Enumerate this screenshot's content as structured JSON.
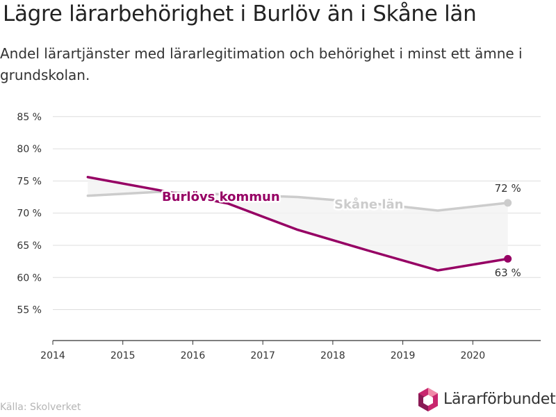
{
  "chart_data": {
    "type": "line",
    "title": "Lägre lärarbehörighet i Burlöv än i Skåne län",
    "subtitle": "Andel lärartjänster med lärarlegitimation och behörighet i minst ett ämne i grundskolan.",
    "source": "Källa: Skolverket",
    "brand": "Lärarförbundet",
    "x": [
      2014.5,
      2015.5,
      2016.5,
      2017.5,
      2018.5,
      2019.5,
      2020.5
    ],
    "x_ticks": [
      "2014",
      "2015",
      "2016",
      "2017",
      "2018",
      "2019",
      "2020"
    ],
    "xlim": [
      2014,
      2020.97
    ],
    "y_ticks": [
      "55 %",
      "60 %",
      "65 %",
      "70 %",
      "75 %",
      "80 %",
      "85 %"
    ],
    "ylim": [
      50.2,
      88
    ],
    "grid": true,
    "series": [
      {
        "name": "Skåne län",
        "values": [
          72.7,
          73.3,
          72.9,
          72.5,
          71.6,
          70.4,
          71.6
        ],
        "color": "#cccccc",
        "end_label": "72 %"
      },
      {
        "name": "Burlövs kommun",
        "values": [
          75.6,
          73.6,
          71.5,
          67.4,
          64.2,
          61.1,
          62.9
        ],
        "color": "#960064",
        "end_label": "63 %"
      }
    ]
  }
}
